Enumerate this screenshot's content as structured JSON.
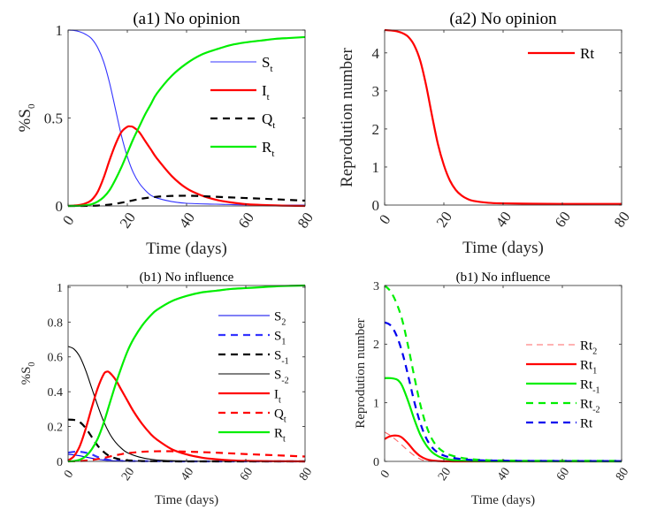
{
  "chart_data": [
    {
      "id": "a1",
      "type": "line",
      "title": "(a1) No opinion",
      "xlabel": "Time (days)",
      "ylabel": "%S",
      "ylabel_sub": "0",
      "xlim": [
        0,
        80
      ],
      "ylim": [
        0,
        1
      ],
      "xticks": [
        "0",
        "20",
        "40",
        "60",
        "80"
      ],
      "xtick_values": [
        0,
        20,
        40,
        60,
        80
      ],
      "yticks": [
        "0",
        "0.5",
        "1"
      ],
      "ytick_values": [
        0,
        0.5,
        1
      ],
      "grid": false,
      "legend_position": "right",
      "series": [
        {
          "name": "S",
          "sub": "t",
          "color": "#3333ff",
          "style": "solid",
          "weight": "thin",
          "x": [
            0,
            2,
            4,
            6,
            8,
            10,
            12,
            14,
            16,
            18,
            20,
            22,
            24,
            26,
            28,
            30,
            35,
            40,
            50,
            60,
            70,
            80
          ],
          "y": [
            1,
            0.998,
            0.99,
            0.975,
            0.95,
            0.9,
            0.82,
            0.7,
            0.55,
            0.4,
            0.28,
            0.19,
            0.13,
            0.09,
            0.06,
            0.045,
            0.025,
            0.015,
            0.01,
            0.006,
            0.005,
            0.005
          ]
        },
        {
          "name": "I",
          "sub": "t",
          "color": "#ff0000",
          "style": "solid",
          "weight": "thick",
          "x": [
            0,
            2,
            4,
            6,
            8,
            10,
            12,
            14,
            16,
            18,
            20,
            21,
            22,
            24,
            26,
            28,
            30,
            35,
            40,
            45,
            50,
            55,
            60,
            65,
            70,
            75,
            80
          ],
          "y": [
            0,
            0.002,
            0.006,
            0.015,
            0.035,
            0.08,
            0.16,
            0.26,
            0.35,
            0.42,
            0.45,
            0.452,
            0.448,
            0.42,
            0.37,
            0.32,
            0.27,
            0.17,
            0.1,
            0.06,
            0.035,
            0.02,
            0.01,
            0.006,
            0.003,
            0.001,
            0
          ]
        },
        {
          "name": "Q",
          "sub": "t",
          "color": "#000000",
          "style": "dashed",
          "weight": "thick",
          "x": [
            0,
            5,
            10,
            15,
            20,
            25,
            30,
            35,
            40,
            45,
            50,
            60,
            70,
            80
          ],
          "y": [
            0,
            0,
            0.002,
            0.01,
            0.025,
            0.042,
            0.052,
            0.057,
            0.058,
            0.056,
            0.052,
            0.045,
            0.038,
            0.03
          ]
        },
        {
          "name": "R",
          "sub": "t",
          "color": "#00ee00",
          "style": "solid",
          "weight": "thick",
          "x": [
            0,
            4,
            6,
            8,
            10,
            12,
            14,
            16,
            18,
            20,
            22,
            24,
            26,
            28,
            30,
            35,
            40,
            45,
            50,
            55,
            60,
            65,
            70,
            75,
            80
          ],
          "y": [
            0,
            0.001,
            0.004,
            0.01,
            0.025,
            0.05,
            0.09,
            0.15,
            0.22,
            0.3,
            0.38,
            0.45,
            0.52,
            0.58,
            0.64,
            0.74,
            0.81,
            0.86,
            0.89,
            0.915,
            0.93,
            0.94,
            0.95,
            0.955,
            0.96
          ]
        }
      ]
    },
    {
      "id": "a2",
      "type": "line",
      "title": "(a2) No opinion",
      "xlabel": "Time (days)",
      "ylabel": "Reprodution number",
      "xlim": [
        0,
        80
      ],
      "ylim": [
        0,
        4.6
      ],
      "xticks": [
        "0",
        "20",
        "40",
        "60",
        "80"
      ],
      "xtick_values": [
        0,
        20,
        40,
        60,
        80
      ],
      "yticks": [
        "0",
        "1",
        "2",
        "3",
        "4"
      ],
      "ytick_values": [
        0,
        1,
        2,
        3,
        4
      ],
      "grid": false,
      "legend_position": "top-right",
      "series": [
        {
          "name": "Rt",
          "sub": "",
          "color": "#ff0000",
          "style": "solid",
          "weight": "thick",
          "x": [
            0,
            2,
            4,
            6,
            8,
            10,
            12,
            14,
            16,
            18,
            20,
            22,
            24,
            26,
            28,
            30,
            35,
            40,
            50,
            60,
            70,
            80
          ],
          "y": [
            4.6,
            4.59,
            4.57,
            4.52,
            4.42,
            4.2,
            3.8,
            3.15,
            2.35,
            1.6,
            1.05,
            0.65,
            0.4,
            0.25,
            0.16,
            0.11,
            0.06,
            0.045,
            0.035,
            0.03,
            0.03,
            0.03
          ]
        }
      ]
    },
    {
      "id": "b1",
      "type": "line",
      "title": "(b1) No influence",
      "xlabel": "Time (days)",
      "ylabel": "%S",
      "ylabel_sub": "0",
      "xlim": [
        0,
        80
      ],
      "ylim": [
        0,
        1.01
      ],
      "xticks": [
        "0",
        "20",
        "40",
        "60",
        "80"
      ],
      "xtick_values": [
        0,
        20,
        40,
        60,
        80
      ],
      "yticks": [
        "0",
        "0.2",
        "0.4",
        "0.6",
        "0.8",
        "1"
      ],
      "ytick_values": [
        0,
        0.2,
        0.4,
        0.6,
        0.8,
        1
      ],
      "grid": false,
      "legend_position": "right",
      "series": [
        {
          "name": "S",
          "sub": "2",
          "color": "#0000ee",
          "style": "solid",
          "weight": "thin",
          "x": [
            0,
            2,
            4,
            6,
            8,
            10,
            12,
            14,
            16,
            20,
            30,
            40,
            80
          ],
          "y": [
            0.04,
            0.037,
            0.032,
            0.025,
            0.018,
            0.012,
            0.008,
            0.005,
            0.003,
            0.002,
            0.001,
            0,
            0
          ]
        },
        {
          "name": "S",
          "sub": "1",
          "color": "#3333ff",
          "style": "dashed",
          "weight": "thick",
          "x": [
            0,
            2,
            4,
            6,
            8,
            10,
            12,
            14,
            16,
            20,
            30,
            40,
            80
          ],
          "y": [
            0.05,
            0.055,
            0.055,
            0.05,
            0.04,
            0.025,
            0.015,
            0.008,
            0.005,
            0.002,
            0.001,
            0,
            0
          ]
        },
        {
          "name": "S",
          "sub": "-1",
          "color": "#000000",
          "style": "dashed",
          "weight": "thick",
          "x": [
            0,
            2,
            4,
            6,
            8,
            10,
            12,
            14,
            16,
            18,
            20,
            25,
            30,
            40,
            80
          ],
          "y": [
            0.24,
            0.238,
            0.225,
            0.19,
            0.14,
            0.09,
            0.055,
            0.03,
            0.018,
            0.01,
            0.006,
            0.002,
            0.001,
            0,
            0
          ]
        },
        {
          "name": "S",
          "sub": "-2",
          "color": "#000000",
          "style": "solid",
          "weight": "thin",
          "x": [
            0,
            2,
            4,
            6,
            8,
            10,
            12,
            14,
            16,
            18,
            20,
            24,
            28,
            32,
            40,
            50,
            80
          ],
          "y": [
            0.66,
            0.645,
            0.6,
            0.52,
            0.42,
            0.32,
            0.23,
            0.16,
            0.11,
            0.075,
            0.05,
            0.025,
            0.012,
            0.006,
            0.002,
            0,
            0
          ]
        },
        {
          "name": "I",
          "sub": "t",
          "color": "#ff0000",
          "style": "solid",
          "weight": "thick",
          "x": [
            0,
            2,
            4,
            6,
            8,
            10,
            12,
            13,
            14,
            16,
            18,
            20,
            22,
            25,
            28,
            30,
            35,
            40,
            45,
            50,
            55,
            60,
            65,
            70,
            80
          ],
          "y": [
            0.005,
            0.03,
            0.09,
            0.19,
            0.31,
            0.42,
            0.5,
            0.515,
            0.51,
            0.47,
            0.41,
            0.35,
            0.29,
            0.215,
            0.155,
            0.125,
            0.07,
            0.04,
            0.022,
            0.012,
            0.006,
            0.003,
            0.002,
            0.001,
            0
          ]
        },
        {
          "name": "Q",
          "sub": "t",
          "color": "#ff0000",
          "style": "dashed",
          "weight": "thick",
          "x": [
            0,
            4,
            8,
            12,
            16,
            20,
            25,
            30,
            35,
            40,
            50,
            60,
            70,
            80
          ],
          "y": [
            0,
            0.002,
            0.008,
            0.02,
            0.035,
            0.047,
            0.055,
            0.058,
            0.058,
            0.056,
            0.05,
            0.042,
            0.035,
            0.028
          ]
        },
        {
          "name": "R",
          "sub": "t",
          "color": "#00ee00",
          "style": "solid",
          "weight": "thick",
          "x": [
            0,
            2,
            4,
            6,
            8,
            10,
            12,
            14,
            16,
            18,
            20,
            22,
            25,
            28,
            30,
            35,
            40,
            45,
            50,
            55,
            60,
            65,
            70,
            75,
            80
          ],
          "y": [
            0,
            0.002,
            0.01,
            0.03,
            0.07,
            0.13,
            0.22,
            0.33,
            0.44,
            0.54,
            0.63,
            0.7,
            0.78,
            0.84,
            0.87,
            0.92,
            0.95,
            0.97,
            0.98,
            0.99,
            0.995,
            1.0,
            1.005,
            1.008,
            1.01
          ]
        }
      ]
    },
    {
      "id": "b2",
      "type": "line",
      "title": "(b1) No influence",
      "xlabel": "Time (days)",
      "ylabel": "Reprodution number",
      "xlim": [
        0,
        80
      ],
      "ylim": [
        0,
        3
      ],
      "xticks": [
        "0",
        "20",
        "40",
        "60",
        "80"
      ],
      "xtick_values": [
        0,
        20,
        40,
        60,
        80
      ],
      "yticks": [
        "0",
        "1",
        "2",
        "3"
      ],
      "ytick_values": [
        0,
        1,
        2,
        3
      ],
      "grid": false,
      "legend_position": "right",
      "series": [
        {
          "name": "Rt",
          "sub": "2",
          "color": "#ff6666",
          "style": "dashed",
          "weight": "thin",
          "x": [
            0,
            2,
            4,
            6,
            8,
            10,
            12,
            13,
            14,
            16,
            20,
            80
          ],
          "y": [
            0.5,
            0.44,
            0.36,
            0.27,
            0.18,
            0.1,
            0.04,
            0.02,
            0.005,
            0,
            0,
            0
          ]
        },
        {
          "name": "Rt",
          "sub": "1",
          "color": "#ff0000",
          "style": "solid",
          "weight": "thick",
          "x": [
            0,
            1,
            2,
            3,
            4,
            5,
            6,
            8,
            10,
            12,
            14,
            16,
            18,
            20,
            25,
            30,
            80
          ],
          "y": [
            0.38,
            0.41,
            0.43,
            0.44,
            0.44,
            0.43,
            0.4,
            0.3,
            0.18,
            0.09,
            0.04,
            0.015,
            0.006,
            0.002,
            0,
            0,
            0
          ]
        },
        {
          "name": "Rt",
          "sub": "-1",
          "color": "#00ee00",
          "style": "solid",
          "weight": "thick",
          "x": [
            0,
            2,
            4,
            5,
            6,
            8,
            10,
            12,
            14,
            16,
            18,
            20,
            22,
            25,
            30,
            40,
            80
          ],
          "y": [
            1.42,
            1.42,
            1.4,
            1.36,
            1.28,
            1.02,
            0.72,
            0.46,
            0.28,
            0.16,
            0.09,
            0.05,
            0.03,
            0.015,
            0.005,
            0.002,
            0
          ]
        },
        {
          "name": "Rt",
          "sub": "-2",
          "color": "#00ee00",
          "style": "dashed",
          "weight": "thick",
          "x": [
            0,
            2,
            4,
            6,
            8,
            10,
            12,
            14,
            16,
            18,
            20,
            22,
            25,
            28,
            30,
            35,
            40,
            50,
            80
          ],
          "y": [
            3.0,
            2.9,
            2.7,
            2.4,
            1.95,
            1.45,
            0.98,
            0.62,
            0.38,
            0.24,
            0.16,
            0.11,
            0.07,
            0.045,
            0.035,
            0.02,
            0.015,
            0.01,
            0.01
          ]
        },
        {
          "name": "Rt",
          "sub": "",
          "color": "#0000ee",
          "style": "dashed",
          "weight": "thick",
          "x": [
            0,
            2,
            4,
            6,
            8,
            10,
            12,
            14,
            16,
            18,
            20,
            22,
            25,
            28,
            30,
            35,
            40,
            50,
            80
          ],
          "y": [
            2.37,
            2.32,
            2.15,
            1.85,
            1.45,
            1.02,
            0.66,
            0.4,
            0.24,
            0.15,
            0.1,
            0.07,
            0.045,
            0.03,
            0.022,
            0.015,
            0.012,
            0.008,
            0.005
          ]
        }
      ]
    }
  ]
}
